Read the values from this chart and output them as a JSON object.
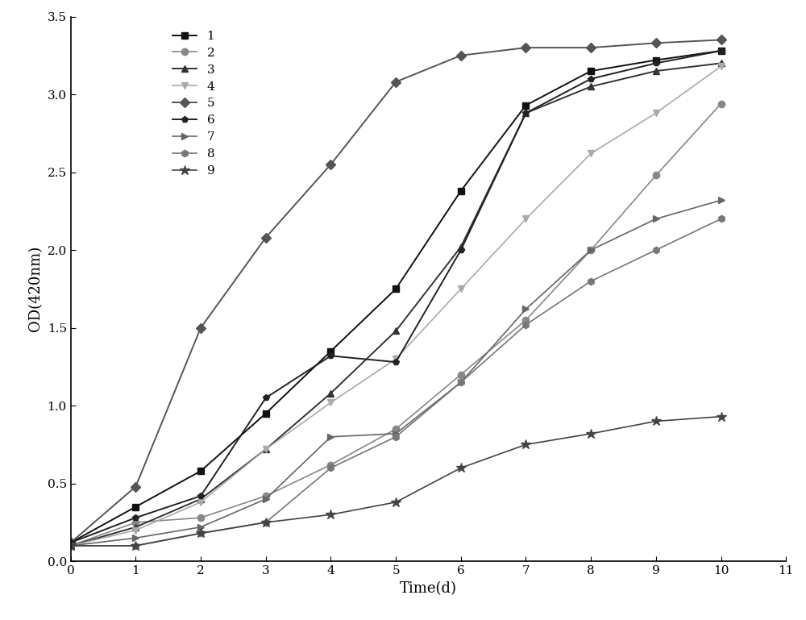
{
  "xlabel": "Time(d)",
  "ylabel": "OD(420nm)",
  "xlim": [
    0,
    11
  ],
  "ylim": [
    0.0,
    3.5
  ],
  "xticks": [
    0,
    1,
    2,
    3,
    4,
    5,
    6,
    7,
    8,
    9,
    10,
    11
  ],
  "yticks": [
    0.0,
    0.5,
    1.0,
    1.5,
    2.0,
    2.5,
    3.0,
    3.5
  ],
  "series": [
    {
      "label": "1",
      "color": "#111111",
      "marker": "s",
      "linestyle": "-",
      "markersize": 6,
      "linewidth": 1.4,
      "x": [
        0,
        1,
        2,
        3,
        4,
        5,
        6,
        7,
        8,
        9,
        10
      ],
      "y": [
        0.12,
        0.35,
        0.58,
        0.95,
        1.35,
        1.75,
        2.38,
        2.93,
        3.15,
        3.22,
        3.28
      ]
    },
    {
      "label": "2",
      "color": "#888888",
      "marker": "o",
      "linestyle": "-",
      "markersize": 6,
      "linewidth": 1.2,
      "x": [
        0,
        1,
        2,
        3,
        4,
        5,
        6,
        7,
        8,
        9,
        10
      ],
      "y": [
        0.1,
        0.25,
        0.28,
        0.42,
        0.62,
        0.85,
        1.2,
        1.55,
        2.0,
        2.48,
        2.94
      ]
    },
    {
      "label": "3",
      "color": "#333333",
      "marker": "^",
      "linestyle": "-",
      "markersize": 6,
      "linewidth": 1.4,
      "x": [
        0,
        1,
        2,
        3,
        4,
        5,
        6,
        7,
        8,
        9,
        10
      ],
      "y": [
        0.1,
        0.22,
        0.4,
        0.72,
        1.08,
        1.48,
        2.02,
        2.88,
        3.05,
        3.15,
        3.2
      ]
    },
    {
      "label": "4",
      "color": "#aaaaaa",
      "marker": "v",
      "linestyle": "-",
      "markersize": 6,
      "linewidth": 1.2,
      "x": [
        0,
        1,
        2,
        3,
        4,
        5,
        6,
        7,
        8,
        9,
        10
      ],
      "y": [
        0.1,
        0.2,
        0.38,
        0.72,
        1.02,
        1.3,
        1.75,
        2.2,
        2.62,
        2.88,
        3.18
      ]
    },
    {
      "label": "5",
      "color": "#555555",
      "marker": "D",
      "linestyle": "-",
      "markersize": 6,
      "linewidth": 1.4,
      "x": [
        0,
        1,
        2,
        3,
        4,
        5,
        6,
        7,
        8,
        9,
        10
      ],
      "y": [
        0.12,
        0.48,
        1.5,
        2.08,
        2.55,
        3.08,
        3.25,
        3.3,
        3.3,
        3.33,
        3.35
      ]
    },
    {
      "label": "6",
      "color": "#222222",
      "marker": "p",
      "linestyle": "-",
      "markersize": 6,
      "linewidth": 1.4,
      "x": [
        0,
        1,
        2,
        3,
        4,
        5,
        6,
        7,
        8,
        9,
        10
      ],
      "y": [
        0.12,
        0.28,
        0.42,
        1.05,
        1.32,
        1.28,
        2.0,
        2.88,
        3.1,
        3.2,
        3.28
      ]
    },
    {
      "label": "7",
      "color": "#666666",
      "marker": ">",
      "linestyle": "-",
      "markersize": 6,
      "linewidth": 1.2,
      "x": [
        0,
        1,
        2,
        3,
        4,
        5,
        6,
        7,
        8,
        9,
        10
      ],
      "y": [
        0.1,
        0.15,
        0.22,
        0.4,
        0.8,
        0.82,
        1.15,
        1.62,
        2.0,
        2.2,
        2.32
      ]
    },
    {
      "label": "8",
      "color": "#777777",
      "marker": "h",
      "linestyle": "-",
      "markersize": 6,
      "linewidth": 1.2,
      "x": [
        0,
        1,
        2,
        3,
        4,
        5,
        6,
        7,
        8,
        9,
        10
      ],
      "y": [
        0.1,
        0.1,
        0.18,
        0.25,
        0.6,
        0.8,
        1.15,
        1.52,
        1.8,
        2.0,
        2.2
      ]
    },
    {
      "label": "9",
      "color": "#444444",
      "marker": "*",
      "linestyle": "-",
      "markersize": 9,
      "linewidth": 1.2,
      "x": [
        0,
        1,
        2,
        3,
        4,
        5,
        6,
        7,
        8,
        9,
        10
      ],
      "y": [
        0.1,
        0.1,
        0.18,
        0.25,
        0.3,
        0.38,
        0.6,
        0.75,
        0.82,
        0.9,
        0.93
      ]
    }
  ],
  "figsize": [
    10.0,
    7.69
  ],
  "dpi": 100
}
